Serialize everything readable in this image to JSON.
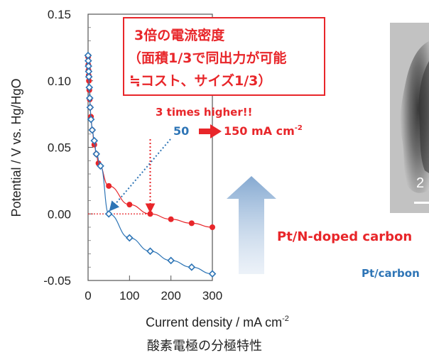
{
  "chart_data": {
    "type": "line",
    "xlabel_main": "Current density / mA cm",
    "xlabel_sup": "-2",
    "ylabel": "Potential / V vs. Hg/HgO",
    "caption": "酸素電極の分極特性",
    "xlim": [
      0,
      300
    ],
    "ylim": [
      -0.05,
      0.15
    ],
    "x_ticks": [
      "0",
      "100",
      "200",
      "300"
    ],
    "y_ticks": [
      "-0.05",
      "0.00",
      "0.05",
      "0.10",
      "0.15"
    ],
    "x_tick_values": [
      0,
      100,
      200,
      300
    ],
    "y_tick_values": [
      -0.05,
      0.0,
      0.05,
      0.1,
      0.15
    ],
    "reference_y": 0.0,
    "series": [
      {
        "name": "Pt/N-doped carbon",
        "color": "#e8262a",
        "marker": "filled-circle",
        "x": [
          0,
          0.5,
          1,
          1.5,
          2,
          3,
          4,
          5,
          7,
          10,
          15,
          20,
          25,
          50,
          100,
          150,
          200,
          250,
          300
        ],
        "y": [
          0.118,
          0.112,
          0.108,
          0.104,
          0.1,
          0.093,
          0.086,
          0.08,
          0.073,
          0.063,
          0.052,
          0.045,
          0.038,
          0.021,
          0.007,
          0.0,
          -0.004,
          -0.007,
          -0.01
        ]
      },
      {
        "name": "Pt/carbon",
        "color": "#2e75b6",
        "marker": "open-diamond",
        "x": [
          0,
          0.5,
          1,
          1.5,
          2,
          3,
          4,
          5,
          7,
          10,
          15,
          20,
          30,
          50,
          100,
          150,
          200,
          250,
          300
        ],
        "y": [
          0.119,
          0.115,
          0.111,
          0.107,
          0.103,
          0.095,
          0.087,
          0.08,
          0.071,
          0.063,
          0.055,
          0.045,
          0.036,
          0.0,
          -0.018,
          -0.028,
          -0.035,
          -0.04,
          -0.045
        ]
      }
    ],
    "annotations": {
      "box_line1": "3倍の電流密度",
      "box_line2": "（面積1/3で同出力が可能",
      "box_line3": "≒コスト、サイズ1/3）",
      "higher": "3 times higher!!",
      "from_value": "50",
      "to_value_main": "150 mA cm",
      "to_value_sup": "-2",
      "from_x": 50,
      "to_x": 150
    }
  },
  "inset_image": {
    "label": "2"
  }
}
